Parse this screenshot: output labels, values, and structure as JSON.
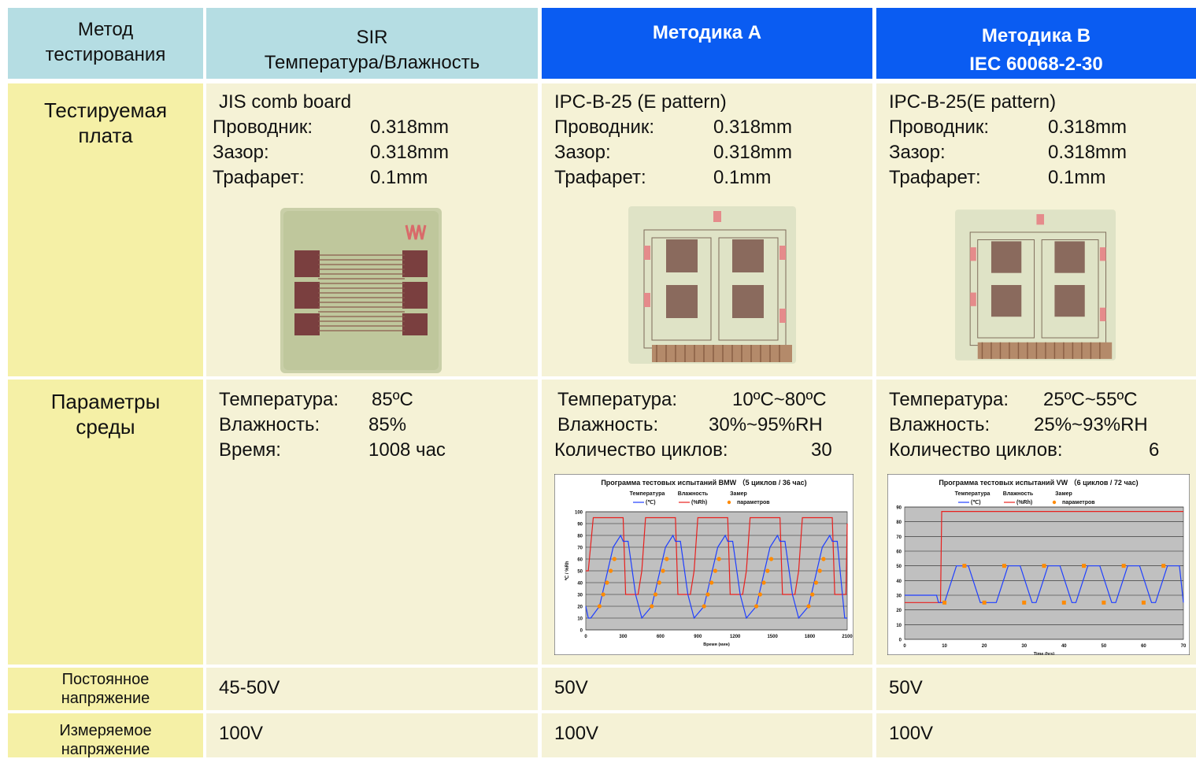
{
  "header": {
    "col0": [
      "Метод",
      "тестирования"
    ],
    "col1": [
      "SIR",
      "Температура/Влажность"
    ],
    "col2": [
      "Методика А"
    ],
    "col3": [
      "Методика В",
      "IEC 60068-2-30"
    ]
  },
  "rows": {
    "board": {
      "label": [
        "Тестируемая",
        "плата"
      ],
      "sir": {
        "title": "JIS comb board",
        "conductor_label": "Проводник:",
        "conductor": "0.318mm",
        "gap_label": "Зазор:",
        "gap": "0.318mm",
        "stencil_label": "Трафарет:",
        "stencil": "0.1mm"
      },
      "a": {
        "title": "IPC-B-25 (E pattern)",
        "conductor_label": "Проводник:",
        "conductor": "0.318mm",
        "gap_label": "Зазор:",
        "gap": "0.318mm",
        "stencil_label": "Трафарет:",
        "stencil": "0.1mm"
      },
      "b": {
        "title": "IPC-B-25(E pattern)",
        "conductor_label": "Проводник:",
        "conductor": "0.318mm",
        "gap_label": "Зазор:",
        "gap": "0.318mm",
        "stencil_label": "Трафарет:",
        "stencil": "0.1mm"
      }
    },
    "env": {
      "label": [
        "Параметры",
        "среды"
      ],
      "sir": {
        "temp_label": "Температура:",
        "temp": "85ºC",
        "hum_label": "Влажность:",
        "hum": "85%",
        "time_label": "Время:",
        "time": "1008 час"
      },
      "a": {
        "temp_label": "Температура:",
        "temp": "10ºC~80ºC",
        "hum_label": "Влажность:",
        "hum": "30%~95%RH",
        "cycles_label": "Количество циклов:",
        "cycles": "30"
      },
      "b": {
        "temp_label": "Температура:",
        "temp": "25ºC~55ºC",
        "hum_label": "Влажность:",
        "hum": "25%~93%RH",
        "cycles_label": "Количество циклов:",
        "cycles": "6"
      }
    },
    "dc": {
      "label": [
        "Постоянное",
        "напряжение"
      ],
      "sir": "45-50V",
      "a": "50V",
      "b": "50V"
    },
    "meas": {
      "label": [
        "Измеряемое",
        "напряжение"
      ],
      "sir": "100V",
      "a": "100V",
      "b": "100V"
    }
  },
  "colors": {
    "header_light": "#b5dde3",
    "header_blue": "#0a5cf2",
    "label_yellow": "#f5f0a6",
    "body_cream": "#f5f2d6",
    "temperature_line": "#1f3fff",
    "humidity_line": "#e8201e",
    "measure_marker": "#ff8a00"
  },
  "chart_data": [
    {
      "type": "line",
      "title": "Программа тестовых испытаний BMW （5 циклов / 36 час)",
      "legend": [
        "Температура (℃)",
        "Влажность (%Rh)",
        "Замер параметров"
      ],
      "legend_position": "top",
      "xlabel": "Время (мин)",
      "ylabel": "℃ / %Rh",
      "xlim": [
        0,
        2100
      ],
      "ylim": [
        0,
        100
      ],
      "xticks": [
        "0",
        "300",
        "600",
        "900",
        "1200",
        "1500",
        "1800",
        "2100"
      ],
      "yticks": [
        "0",
        "10",
        "20",
        "30",
        "40",
        "50",
        "60",
        "70",
        "80",
        "90",
        "100"
      ],
      "grid": true,
      "series": [
        {
          "name": "Температура (℃)",
          "x": [
            0,
            20,
            40,
            110,
            220,
            280,
            300,
            340,
            400,
            450,
            530,
            640,
            700,
            720,
            760,
            820,
            870,
            950,
            1060,
            1120,
            1140,
            1180,
            1240,
            1290,
            1370,
            1480,
            1540,
            1560,
            1600,
            1660,
            1710,
            1790,
            1900,
            1960,
            1980,
            2020,
            2080,
            2100
          ],
          "y": [
            20,
            10,
            10,
            20,
            70,
            80,
            75,
            75,
            30,
            10,
            20,
            70,
            80,
            75,
            75,
            30,
            10,
            20,
            70,
            80,
            75,
            75,
            30,
            10,
            20,
            70,
            80,
            75,
            75,
            30,
            10,
            20,
            70,
            80,
            75,
            75,
            10,
            10
          ]
        },
        {
          "name": "Влажность (%Rh)",
          "x": [
            0,
            20,
            60,
            300,
            320,
            410,
            420,
            450,
            480,
            720,
            740,
            830,
            840,
            870,
            900,
            1140,
            1160,
            1250,
            1260,
            1290,
            1320,
            1560,
            1580,
            1670,
            1680,
            1710,
            1740,
            1980,
            2000,
            2090,
            2100
          ],
          "y": [
            50,
            50,
            95,
            95,
            30,
            30,
            30,
            50,
            95,
            95,
            30,
            30,
            30,
            50,
            95,
            95,
            30,
            30,
            30,
            50,
            95,
            95,
            30,
            30,
            30,
            50,
            95,
            95,
            30,
            30,
            90
          ]
        },
        {
          "name": "Замер параметров",
          "x": [
            110,
            140,
            170,
            200,
            230,
            530,
            560,
            590,
            620,
            650,
            950,
            980,
            1010,
            1040,
            1070,
            1370,
            1400,
            1430,
            1460,
            1490,
            1790,
            1820,
            1850,
            1880,
            1910
          ],
          "y": [
            20,
            30,
            40,
            50,
            60,
            20,
            30,
            40,
            50,
            60,
            20,
            30,
            40,
            50,
            60,
            20,
            30,
            40,
            50,
            60,
            20,
            30,
            40,
            50,
            60
          ]
        }
      ]
    },
    {
      "type": "line",
      "title": "Программа тестовых испытаний VW （6 циклов / 72 час)",
      "legend": [
        "Температура (℃)",
        "Влажность (%Rh)",
        "Замер параметров"
      ],
      "legend_position": "top",
      "xlabel": "Time (hrs)",
      "ylabel": "℃ / %Rh",
      "xlim": [
        0,
        70
      ],
      "ylim": [
        0,
        90
      ],
      "xticks": [
        "0",
        "10",
        "20",
        "30",
        "40",
        "50",
        "60",
        "70"
      ],
      "yticks": [
        "0",
        "10",
        "20",
        "30",
        "40",
        "50",
        "60",
        "70",
        "80",
        "90"
      ],
      "grid": true,
      "series": [
        {
          "name": "Температура (℃)",
          "x": [
            0,
            8,
            8.5,
            10,
            13,
            16,
            19,
            22,
            23,
            26,
            29,
            32,
            33,
            36,
            39,
            42,
            43,
            46,
            49,
            52,
            53,
            56,
            59,
            62,
            63,
            66,
            69,
            70
          ],
          "y": [
            30,
            30,
            25,
            25,
            50,
            50,
            25,
            25,
            25,
            50,
            50,
            25,
            25,
            50,
            50,
            25,
            25,
            50,
            50,
            25,
            25,
            50,
            50,
            25,
            25,
            50,
            50,
            25
          ]
        },
        {
          "name": "Влажность (%Rh)",
          "x": [
            0,
            9,
            9.3,
            70
          ],
          "y": [
            25,
            25,
            87,
            87
          ]
        },
        {
          "name": "Замер параметров",
          "x": [
            10,
            15,
            20,
            25,
            30,
            35,
            40,
            45,
            50,
            55,
            60,
            65
          ],
          "y": [
            25,
            50,
            25,
            50,
            25,
            50,
            25,
            50,
            25,
            50,
            25,
            50
          ]
        }
      ]
    }
  ]
}
